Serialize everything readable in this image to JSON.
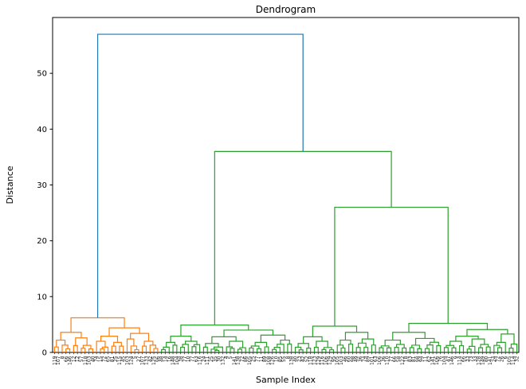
{
  "figure": {
    "background_color": "#ffffff"
  },
  "chart_data": {
    "type": "dendrogram",
    "title": "Dendrogram",
    "xlabel": "Sample Index",
    "ylabel": "Distance",
    "ylim": [
      0,
      60
    ],
    "yticks": [
      0,
      10,
      20,
      30,
      40,
      50
    ],
    "grid": false,
    "legend": false,
    "axis_color": "#000000",
    "n_leaves": 122,
    "x_tick_labels_note": "per-sample index numbers rotated 90 degrees, densely overlapping and illegible at this scale",
    "link_colors": {
      "above_threshold": "#1f77b4",
      "left_cluster": "#ff7f0e",
      "right_cluster": "#2ca02c"
    },
    "major_merge_distances": {
      "root": 57,
      "right_cluster_top": 36,
      "right_cluster_secondary": 26,
      "left_cluster_top": 6.2
    },
    "tree": {
      "h": 57,
      "color": "#1f77b4",
      "children": [
        {
          "h": 6.2,
          "color": "#ff7f0e",
          "children": [
            {
              "h": 3.6,
              "children": [
                {
                  "leaves": 5,
                  "max_h": 2.2
                },
                {
                  "leaves": 6,
                  "max_h": 2.6
                }
              ]
            },
            {
              "h": 4.4,
              "children": [
                {
                  "h": 2.9,
                  "children": [
                    {
                      "leaves": 4,
                      "max_h": 2.0
                    },
                    {
                      "leaves": 4,
                      "max_h": 1.8
                    }
                  ]
                },
                {
                  "h": 3.4,
                  "children": [
                    {
                      "leaves": 4,
                      "max_h": 2.4
                    },
                    {
                      "leaves": 5,
                      "max_h": 2.0
                    }
                  ]
                }
              ]
            }
          ]
        },
        {
          "h": 36,
          "color": "#2ca02c",
          "children": [
            {
              "h": 4.9,
              "children": [
                {
                  "h": 2.9,
                  "children": [
                    {
                      "leaves": 5,
                      "max_h": 1.8
                    },
                    {
                      "leaves": 6,
                      "max_h": 2.0
                    }
                  ]
                },
                {
                  "h": 4.0,
                  "children": [
                    {
                      "h": 2.8,
                      "children": [
                        {
                          "leaves": 6,
                          "max_h": 1.6
                        },
                        {
                          "leaves": 6,
                          "max_h": 2.0
                        }
                      ]
                    },
                    {
                      "h": 3.1,
                      "children": [
                        {
                          "leaves": 6,
                          "max_h": 1.8
                        },
                        {
                          "leaves": 6,
                          "max_h": 2.2
                        }
                      ]
                    }
                  ]
                }
              ]
            },
            {
              "h": 26,
              "children": [
                {
                  "h": 4.7,
                  "children": [
                    {
                      "h": 2.8,
                      "children": [
                        {
                          "leaves": 5,
                          "max_h": 1.6
                        },
                        {
                          "leaves": 6,
                          "max_h": 2.0
                        }
                      ]
                    },
                    {
                      "h": 3.6,
                      "children": [
                        {
                          "leaves": 5,
                          "max_h": 2.2
                        },
                        {
                          "leaves": 6,
                          "max_h": 2.4
                        }
                      ]
                    }
                  ]
                },
                {
                  "h": 5.2,
                  "children": [
                    {
                      "h": 3.6,
                      "children": [
                        {
                          "leaves": 8,
                          "max_h": 2.2
                        },
                        {
                          "leaves": 9,
                          "max_h": 2.5
                        }
                      ]
                    },
                    {
                      "h": 4.1,
                      "children": [
                        {
                          "h": 2.9,
                          "children": [
                            {
                              "leaves": 6,
                              "max_h": 2.0
                            },
                            {
                              "leaves": 7,
                              "max_h": 2.4
                            }
                          ]
                        },
                        {
                          "h": 3.3,
                          "children": [
                            {
                              "leaves": 4,
                              "max_h": 1.8
                            },
                            {
                              "leaves": 3,
                              "max_h": 1.5
                            }
                          ]
                        }
                      ]
                    }
                  ]
                }
              ]
            }
          ]
        }
      ]
    }
  }
}
